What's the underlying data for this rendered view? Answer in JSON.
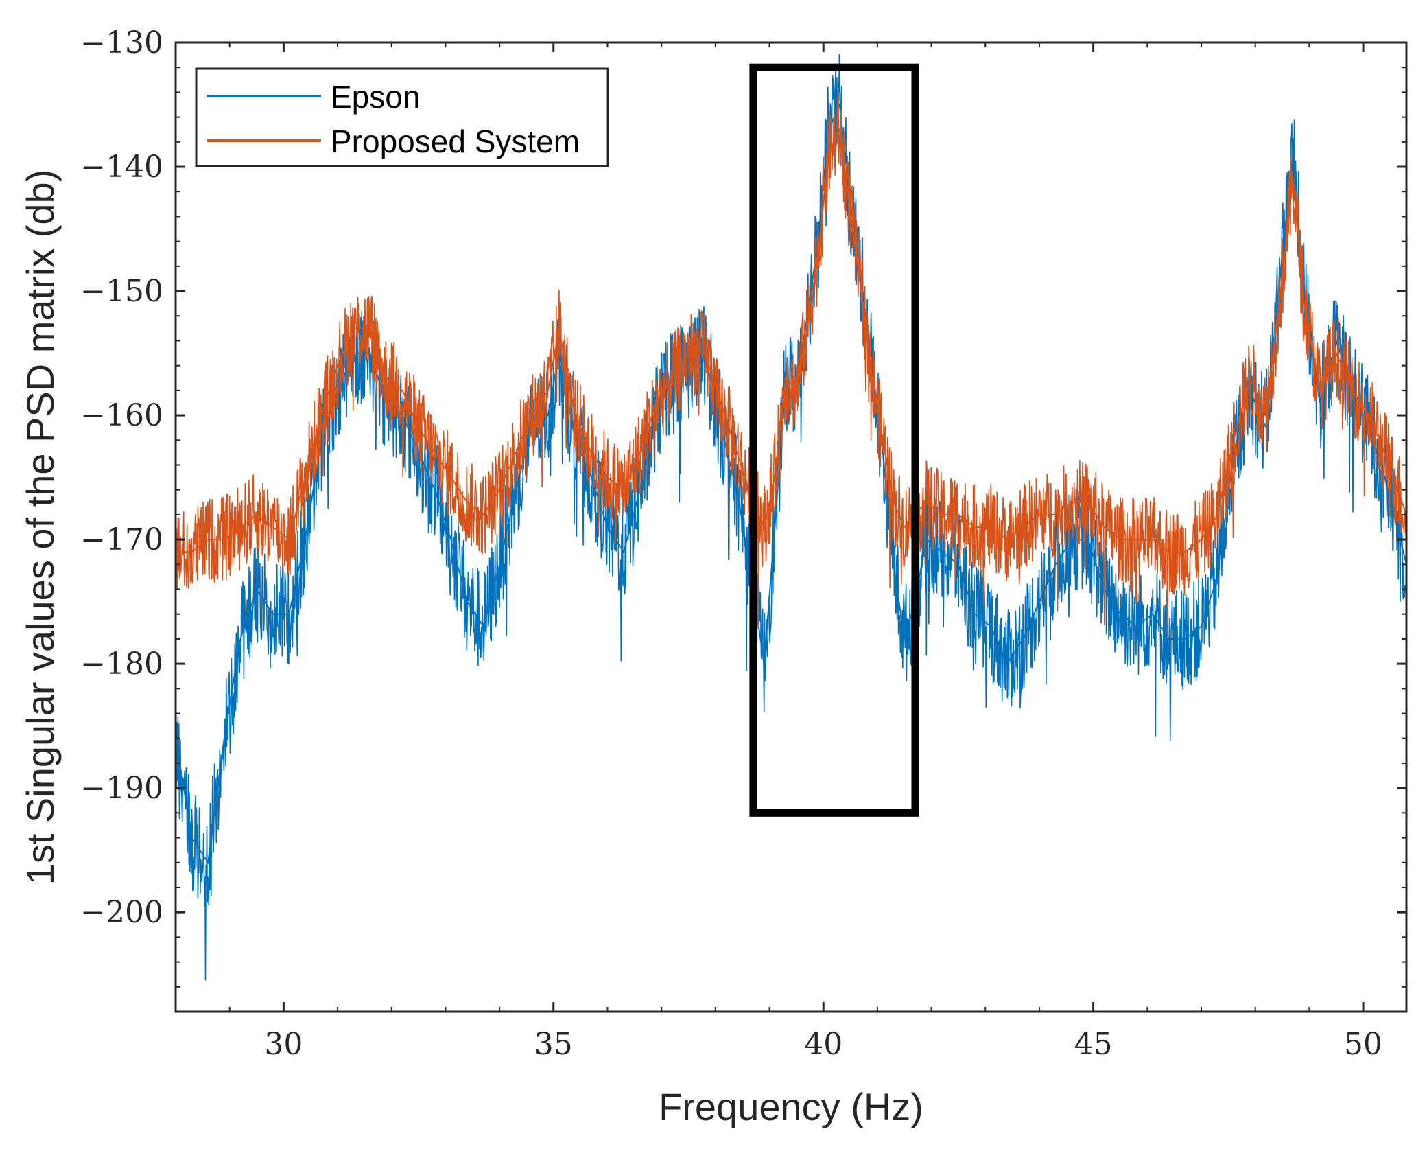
{
  "chart_data": {
    "type": "line",
    "title": "",
    "xlabel": "Frequency (Hz)",
    "ylabel": "1st Singular values of the PSD matrix (db)",
    "xlim": [
      28,
      50.8
    ],
    "ylim": [
      -208,
      -130
    ],
    "xticks": [
      30,
      35,
      40,
      45,
      50
    ],
    "yticks": [
      -130,
      -140,
      -150,
      -160,
      -170,
      -180,
      -190,
      -200
    ],
    "xtick_labels": [
      "30",
      "35",
      "40",
      "45",
      "50"
    ],
    "ytick_labels": [
      "−130",
      "−140",
      "−150",
      "−160",
      "−170",
      "−180",
      "−190",
      "−200"
    ],
    "grid": false,
    "legend_position": "top-left",
    "series": [
      {
        "name": "Epson",
        "color": "#0072BD",
        "noise": 6,
        "x": [
          28,
          28.3,
          28.6,
          28.9,
          29.2,
          29.5,
          29.8,
          30.1,
          30.4,
          30.7,
          31.0,
          31.3,
          31.6,
          31.9,
          32.2,
          32.5,
          32.8,
          33.1,
          33.4,
          33.7,
          34.0,
          34.3,
          34.6,
          34.9,
          35.1,
          35.4,
          35.7,
          36.0,
          36.3,
          36.6,
          36.9,
          37.2,
          37.5,
          37.8,
          38.1,
          38.4,
          38.7,
          38.9,
          39.1,
          39.3,
          39.5,
          39.7,
          39.9,
          40.1,
          40.3,
          40.5,
          40.7,
          40.9,
          41.1,
          41.3,
          41.5,
          41.7,
          41.9,
          42.2,
          42.5,
          42.8,
          43.1,
          43.4,
          43.7,
          44.0,
          44.3,
          44.6,
          44.9,
          45.2,
          45.5,
          45.8,
          46.1,
          46.4,
          46.7,
          47.0,
          47.3,
          47.6,
          47.9,
          48.2,
          48.5,
          48.7,
          48.9,
          49.2,
          49.5,
          49.8,
          50.1,
          50.4,
          50.8
        ],
        "y": [
          -186,
          -194,
          -196,
          -186,
          -178,
          -174,
          -176,
          -176,
          -170,
          -162,
          -158,
          -155,
          -155,
          -159,
          -160,
          -163,
          -166,
          -170,
          -175,
          -177,
          -172,
          -166,
          -161,
          -160,
          -155,
          -162,
          -165,
          -169,
          -171,
          -166,
          -160,
          -157,
          -156,
          -155,
          -161,
          -166,
          -174,
          -180,
          -169,
          -157,
          -158,
          -152,
          -146,
          -137,
          -135,
          -143,
          -149,
          -156,
          -163,
          -172,
          -178,
          -175,
          -170,
          -171,
          -172,
          -176,
          -177,
          -180,
          -178,
          -175,
          -172,
          -170,
          -170,
          -174,
          -176,
          -177,
          -176,
          -178,
          -178,
          -177,
          -173,
          -163,
          -158,
          -161,
          -147,
          -139,
          -150,
          -159,
          -154,
          -158,
          -161,
          -165,
          -172
        ]
      },
      {
        "name": "Proposed System",
        "color": "#D95319",
        "noise": 5,
        "x": [
          28,
          28.3,
          28.6,
          28.9,
          29.2,
          29.5,
          29.8,
          30.1,
          30.4,
          30.7,
          31.0,
          31.3,
          31.6,
          31.9,
          32.2,
          32.5,
          32.8,
          33.1,
          33.4,
          33.7,
          34.0,
          34.3,
          34.6,
          34.9,
          35.1,
          35.4,
          35.7,
          36.0,
          36.3,
          36.6,
          36.9,
          37.2,
          37.5,
          37.8,
          38.1,
          38.4,
          38.7,
          38.9,
          39.1,
          39.3,
          39.5,
          39.7,
          39.9,
          40.1,
          40.3,
          40.5,
          40.7,
          40.9,
          41.1,
          41.3,
          41.5,
          41.7,
          41.9,
          42.2,
          42.5,
          42.8,
          43.1,
          43.4,
          43.7,
          44.0,
          44.3,
          44.6,
          44.9,
          45.2,
          45.5,
          45.8,
          46.1,
          46.4,
          46.7,
          47.0,
          47.3,
          47.6,
          47.9,
          48.2,
          48.5,
          48.7,
          48.9,
          49.2,
          49.5,
          49.8,
          50.1,
          50.4,
          50.8
        ],
        "y": [
          -171,
          -171,
          -170,
          -170,
          -169,
          -168,
          -169,
          -170,
          -165,
          -160,
          -156,
          -153,
          -153,
          -157,
          -158,
          -161,
          -163,
          -165,
          -167,
          -168,
          -166,
          -163,
          -160,
          -158,
          -153,
          -160,
          -163,
          -165,
          -166,
          -163,
          -159,
          -157,
          -155,
          -155,
          -159,
          -163,
          -167,
          -169,
          -165,
          -157,
          -158,
          -153,
          -147,
          -139,
          -137,
          -144,
          -150,
          -157,
          -162,
          -167,
          -169,
          -168,
          -167,
          -168,
          -168,
          -169,
          -169,
          -170,
          -169,
          -168,
          -168,
          -167,
          -167,
          -169,
          -170,
          -170,
          -170,
          -171,
          -171,
          -170,
          -168,
          -162,
          -157,
          -160,
          -149,
          -141,
          -151,
          -158,
          -155,
          -158,
          -160,
          -163,
          -168
        ]
      }
    ],
    "annotations": [
      {
        "type": "rectangle",
        "label": "highlight",
        "x0": 38.7,
        "x1": 41.7,
        "y0": -192,
        "y1": -132
      }
    ]
  }
}
